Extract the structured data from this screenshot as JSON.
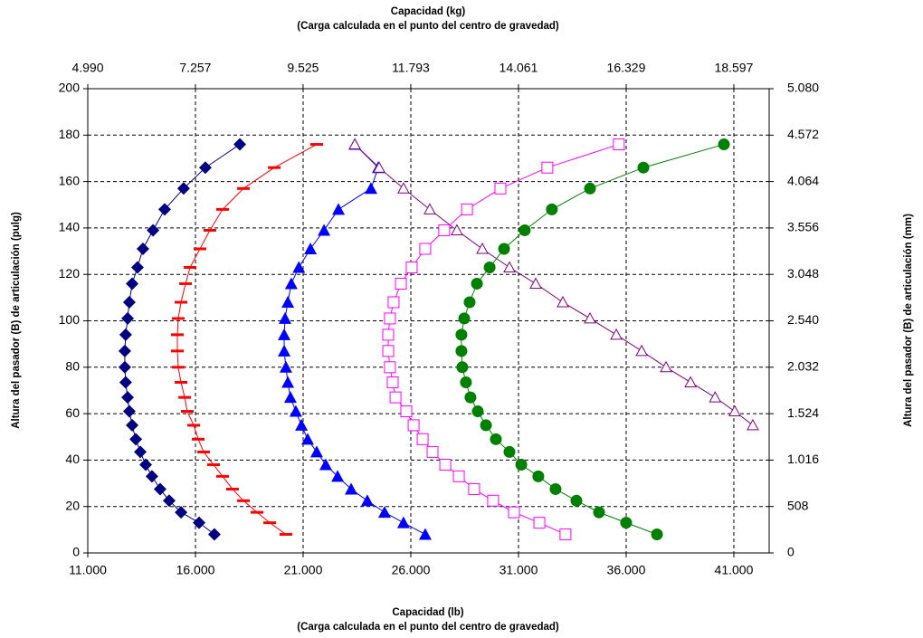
{
  "chart_data": {
    "type": "scatter",
    "xlabel": [
      "Capacidad (lb)",
      "(Carga calculada en el punto del centro de gravedad)"
    ],
    "x2label": [
      "Capacidad (kg)",
      "(Carga calculada en el punto del centro de gravedad)"
    ],
    "ylabel": "Altura del pasador (B) de articulación (pulg)",
    "y2label": "Altura del pasador (B) de articulación (mm)",
    "xlim": [
      11000,
      42640
    ],
    "xticks": [
      {
        "value": 11000,
        "label": "11.000"
      },
      {
        "value": 16000,
        "label": "16.000"
      },
      {
        "value": 21000,
        "label": "21.000"
      },
      {
        "value": 26000,
        "label": "26.000"
      },
      {
        "value": 31000,
        "label": "31.000"
      },
      {
        "value": 36000,
        "label": "36.000"
      },
      {
        "value": 41000,
        "label": "41.000"
      }
    ],
    "x2lim": [
      4990,
      19341
    ],
    "x2ticks": [
      {
        "value": 4990,
        "label": "4.990"
      },
      {
        "value": 7257,
        "label": "7.257"
      },
      {
        "value": 9525,
        "label": "9.525"
      },
      {
        "value": 11793,
        "label": "11.793"
      },
      {
        "value": 14061,
        "label": "14.061"
      },
      {
        "value": 16329,
        "label": "16.329"
      },
      {
        "value": 18597,
        "label": "18.597"
      }
    ],
    "ylim": [
      0,
      200
    ],
    "yticks": [
      0,
      20,
      40,
      60,
      80,
      100,
      120,
      140,
      160,
      180,
      200
    ],
    "y2lim": [
      0,
      5080
    ],
    "y2ticks": [
      0,
      508,
      {
        "value": 1016,
        "label": "1.016"
      },
      {
        "value": 1524,
        "label": "1.524"
      },
      {
        "value": 2032,
        "label": "2.032"
      },
      {
        "value": 2540,
        "label": "2.540"
      },
      {
        "value": 3048,
        "label": "3.048"
      },
      {
        "value": 3556,
        "label": "3.556"
      },
      {
        "value": 4064,
        "label": "4.064"
      },
      {
        "value": 4572,
        "label": "4.572"
      },
      {
        "value": 5080,
        "label": "5.080"
      }
    ],
    "grid": true,
    "series": [
      {
        "color": "#000080",
        "marker": "diamond",
        "x": [
          16880,
          16170,
          15330,
          14780,
          14360,
          13980,
          13690,
          13440,
          13230,
          13060,
          12930,
          12850,
          12760,
          12720,
          12720,
          12760,
          12850,
          12930,
          13060,
          13310,
          13560,
          14030,
          14570,
          15450,
          16460,
          18060
        ],
        "y": [
          8,
          13,
          17.5,
          22.5,
          27.5,
          33,
          38,
          43.5,
          49,
          55,
          61,
          67,
          73.5,
          80,
          87,
          94,
          101,
          108,
          116,
          123,
          131,
          139,
          148,
          157,
          166,
          176
        ]
      },
      {
        "color": "#ff0000",
        "marker": "dash",
        "x": [
          20200,
          19450,
          18860,
          18230,
          17720,
          17260,
          16840,
          16380,
          16130,
          15920,
          15620,
          15500,
          15330,
          15200,
          15160,
          15160,
          15200,
          15330,
          15540,
          15750,
          16210,
          16670,
          17260,
          18230,
          19660,
          21630
        ],
        "y": [
          8,
          13,
          17.5,
          22.5,
          27.5,
          33,
          38,
          43.5,
          49,
          55,
          61,
          67,
          73.5,
          80,
          87,
          94,
          101,
          108,
          116,
          123,
          131,
          139,
          148,
          157,
          166,
          176
        ]
      },
      {
        "color": "#0000ff",
        "marker": "triangle",
        "x": [
          26670,
          25660,
          24780,
          23980,
          23230,
          22600,
          22050,
          21630,
          21210,
          20920,
          20660,
          20410,
          20290,
          20200,
          20120,
          20120,
          20160,
          20290,
          20450,
          20800,
          21340,
          21970,
          22640,
          24150,
          24490,
          23400
        ],
        "y": [
          8,
          13,
          17.5,
          22.5,
          27.5,
          33,
          38,
          43.5,
          49,
          55,
          61,
          67,
          73.5,
          80,
          87,
          94,
          101,
          108,
          116,
          123,
          131,
          139,
          148,
          157,
          166,
          176
        ]
      },
      {
        "color": "#800080",
        "marker": "open-triangle",
        "x": [
          23400,
          24530,
          25660,
          26880,
          28140,
          29320,
          30580,
          31800,
          33060,
          34320,
          35540,
          36720,
          37850,
          38990,
          40130,
          41040,
          41880
        ],
        "y": [
          176,
          166,
          157,
          148,
          139,
          131,
          123,
          116,
          108,
          101,
          94,
          87,
          80,
          73.5,
          67,
          61,
          55
        ]
      },
      {
        "color": "#ff00ff",
        "marker": "open-square",
        "x": [
          33180,
          31970,
          30790,
          29820,
          28940,
          28230,
          27600,
          27010,
          26550,
          26130,
          25790,
          25290,
          25160,
          25030,
          24950,
          24950,
          25030,
          25200,
          25540,
          26040,
          26670,
          27550,
          28610,
          30160,
          32340,
          35660
        ],
        "y": [
          8,
          13,
          17.5,
          22.5,
          27.5,
          33,
          38,
          43.5,
          49,
          55,
          61,
          67,
          73.5,
          80,
          87,
          94,
          101,
          108,
          116,
          123,
          131,
          139,
          148,
          157,
          166,
          176
        ]
      },
      {
        "color": "#008000",
        "marker": "circle",
        "x": [
          37430,
          36000,
          34740,
          33690,
          32720,
          31920,
          31130,
          30580,
          29950,
          29490,
          29110,
          28770,
          28560,
          28390,
          28350,
          28350,
          28480,
          28730,
          29070,
          29660,
          30330,
          31290,
          32550,
          34320,
          36800,
          40540
        ],
        "y": [
          8,
          13,
          17.5,
          22.5,
          27.5,
          33,
          38,
          43.5,
          49,
          55,
          61,
          67,
          73.5,
          80,
          87,
          94,
          101,
          108,
          116,
          123,
          131,
          139,
          148,
          157,
          166,
          176
        ]
      }
    ]
  }
}
